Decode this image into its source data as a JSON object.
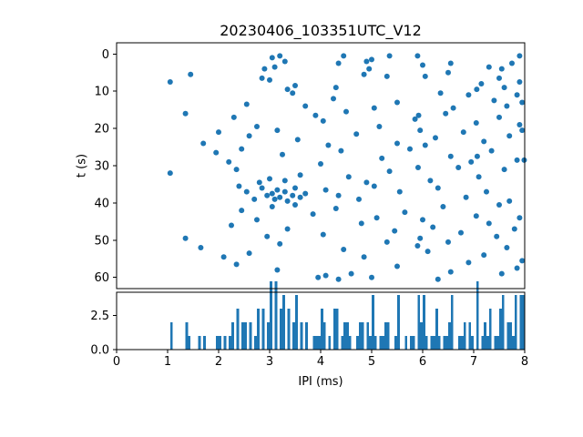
{
  "figure": {
    "background": "#ffffff",
    "spine_color": "#000000"
  },
  "chart_data": [
    {
      "type": "scatter",
      "title": "20230406_103351UTC_V12",
      "xlabel": "IPI (ms)",
      "ylabel": "t (s)",
      "xlim": [
        0,
        8
      ],
      "ylim": [
        63,
        -3
      ],
      "y_inverted": true,
      "ytick_values": [
        0,
        10,
        20,
        30,
        40,
        50,
        60
      ],
      "ytick_labels": [
        "0",
        "10",
        "20",
        "30",
        "40",
        "50",
        "60"
      ],
      "xtick_values": [
        0,
        1,
        2,
        3,
        4,
        5,
        6,
        7,
        8
      ],
      "xtick_labels": [
        "0",
        "1",
        "2",
        "3",
        "4",
        "5",
        "6",
        "7",
        "8"
      ],
      "marker_color": "#1f77b4",
      "points": [
        [
          3.05,
          1
        ],
        [
          3.2,
          0.5
        ],
        [
          3.3,
          2
        ],
        [
          4.45,
          0.5
        ],
        [
          4.9,
          2
        ],
        [
          5.0,
          1.5
        ],
        [
          5.35,
          0.5
        ],
        [
          5.9,
          0.5
        ],
        [
          7.9,
          0.5
        ],
        [
          4.35,
          2.5
        ],
        [
          6.0,
          3
        ],
        [
          7.3,
          3.5
        ],
        [
          2.9,
          4
        ],
        [
          3.1,
          3.5
        ],
        [
          4.95,
          4
        ],
        [
          6.55,
          2.5
        ],
        [
          7.55,
          4
        ],
        [
          7.75,
          2.5
        ],
        [
          1.05,
          7.5
        ],
        [
          1.45,
          5.5
        ],
        [
          2.85,
          6.5
        ],
        [
          3.0,
          7
        ],
        [
          3.5,
          8.5
        ],
        [
          4.3,
          9
        ],
        [
          4.85,
          5.5
        ],
        [
          5.3,
          6
        ],
        [
          6.05,
          6
        ],
        [
          6.5,
          5
        ],
        [
          7.15,
          8
        ],
        [
          7.5,
          6.5
        ],
        [
          7.6,
          9
        ],
        [
          7.9,
          7.5
        ],
        [
          3.35,
          9.5
        ],
        [
          3.45,
          10.5
        ],
        [
          4.25,
          12
        ],
        [
          5.5,
          13
        ],
        [
          6.35,
          10.5
        ],
        [
          6.9,
          11
        ],
        [
          7.4,
          12.5
        ],
        [
          7.85,
          11
        ],
        [
          7.95,
          13
        ],
        [
          2.55,
          13.5
        ],
        [
          3.7,
          14
        ],
        [
          5.05,
          14.5
        ],
        [
          7.65,
          14
        ],
        [
          6.6,
          14.5
        ],
        [
          1.35,
          16
        ],
        [
          2.3,
          17
        ],
        [
          3.9,
          16.5
        ],
        [
          4.05,
          18
        ],
        [
          4.5,
          15.5
        ],
        [
          5.85,
          17.5
        ],
        [
          6.45,
          16
        ],
        [
          7.05,
          18.5
        ],
        [
          7.5,
          17
        ],
        [
          7.9,
          19
        ],
        [
          2.75,
          19.5
        ],
        [
          5.15,
          19.5
        ],
        [
          5.92,
          16.5
        ],
        [
          2.0,
          21
        ],
        [
          2.6,
          22
        ],
        [
          3.15,
          20.5
        ],
        [
          3.55,
          23
        ],
        [
          4.7,
          21.5
        ],
        [
          5.95,
          20.5
        ],
        [
          6.25,
          22.5
        ],
        [
          6.8,
          21
        ],
        [
          7.2,
          23.5
        ],
        [
          7.7,
          22
        ],
        [
          1.7,
          24
        ],
        [
          4.15,
          24.5
        ],
        [
          5.5,
          24
        ],
        [
          6.05,
          24.5
        ],
        [
          7.95,
          20.5
        ],
        [
          1.95,
          26.5
        ],
        [
          2.45,
          25.5
        ],
        [
          3.25,
          27
        ],
        [
          4.4,
          26
        ],
        [
          5.2,
          28
        ],
        [
          5.75,
          25.5
        ],
        [
          6.55,
          27.5
        ],
        [
          7.35,
          26
        ],
        [
          7.85,
          28.5
        ],
        [
          2.2,
          29
        ],
        [
          4.0,
          29.5
        ],
        [
          6.95,
          29
        ],
        [
          7.99,
          28.5
        ],
        [
          7.07,
          27.5
        ],
        [
          1.05,
          32
        ],
        [
          2.35,
          31
        ],
        [
          3.0,
          33.5
        ],
        [
          3.3,
          34
        ],
        [
          3.6,
          32.5
        ],
        [
          4.55,
          33
        ],
        [
          5.35,
          31.5
        ],
        [
          6.15,
          34
        ],
        [
          6.7,
          30.5
        ],
        [
          7.1,
          33
        ],
        [
          7.6,
          31
        ],
        [
          4.9,
          34.5
        ],
        [
          2.8,
          34.5
        ],
        [
          5.91,
          30.5
        ],
        [
          2.55,
          37
        ],
        [
          2.85,
          36
        ],
        [
          2.95,
          38
        ],
        [
          3.05,
          37.5
        ],
        [
          3.1,
          39
        ],
        [
          3.15,
          36.5
        ],
        [
          3.2,
          38.5
        ],
        [
          3.3,
          37
        ],
        [
          3.35,
          39.5
        ],
        [
          3.45,
          38
        ],
        [
          3.5,
          36
        ],
        [
          3.6,
          38.5
        ],
        [
          3.7,
          37.5
        ],
        [
          2.7,
          39
        ],
        [
          4.1,
          36.5
        ],
        [
          4.35,
          38
        ],
        [
          4.75,
          39
        ],
        [
          5.55,
          37
        ],
        [
          6.3,
          36
        ],
        [
          6.85,
          38.5
        ],
        [
          7.25,
          37
        ],
        [
          7.7,
          39.5
        ],
        [
          5.05,
          35.5
        ],
        [
          2.4,
          35.5
        ],
        [
          2.45,
          42
        ],
        [
          3.05,
          41
        ],
        [
          3.5,
          40.5
        ],
        [
          3.85,
          43
        ],
        [
          4.3,
          41.5
        ],
        [
          5.1,
          44
        ],
        [
          5.65,
          42.5
        ],
        [
          6.4,
          41
        ],
        [
          7.05,
          43.5
        ],
        [
          7.5,
          40.5
        ],
        [
          7.9,
          44
        ],
        [
          2.75,
          44.5
        ],
        [
          6.0,
          44.5
        ],
        [
          1.35,
          49.5
        ],
        [
          2.25,
          46
        ],
        [
          3.35,
          47
        ],
        [
          4.05,
          48.5
        ],
        [
          4.8,
          45.5
        ],
        [
          5.45,
          47.5
        ],
        [
          6.2,
          46.5
        ],
        [
          6.75,
          48
        ],
        [
          7.3,
          45.5
        ],
        [
          7.8,
          47
        ],
        [
          2.95,
          49
        ],
        [
          5.95,
          49.5
        ],
        [
          7.45,
          49
        ],
        [
          7.06,
          9.5
        ],
        [
          1.65,
          52
        ],
        [
          2.6,
          53.5
        ],
        [
          3.2,
          51
        ],
        [
          4.45,
          52.5
        ],
        [
          5.3,
          50.5
        ],
        [
          5.9,
          51.5
        ],
        [
          6.1,
          53
        ],
        [
          6.5,
          50.5
        ],
        [
          7.2,
          54
        ],
        [
          7.65,
          52
        ],
        [
          2.1,
          54.5
        ],
        [
          4.85,
          54.5
        ],
        [
          2.35,
          56.5
        ],
        [
          3.95,
          60
        ],
        [
          4.1,
          59.5
        ],
        [
          4.35,
          60.5
        ],
        [
          4.6,
          59
        ],
        [
          5.5,
          57
        ],
        [
          5.0,
          60
        ],
        [
          6.55,
          58.5
        ],
        [
          6.9,
          56
        ],
        [
          7.55,
          59
        ],
        [
          7.85,
          57.5
        ],
        [
          3.15,
          58
        ],
        [
          7.95,
          55.5
        ],
        [
          6.3,
          60.5
        ]
      ]
    },
    {
      "type": "bar",
      "subtype": "histogram",
      "note": "histogram of the IPI values shown in the scatter above (shared x axis)",
      "bin_width": 0.05,
      "range": [
        0,
        8
      ],
      "ylim": [
        0,
        4.2
      ],
      "ytick_values": [
        0,
        2.5
      ],
      "ytick_labels": [
        "0.0",
        "2.5"
      ],
      "bar_color": "#1f77b4"
    }
  ]
}
